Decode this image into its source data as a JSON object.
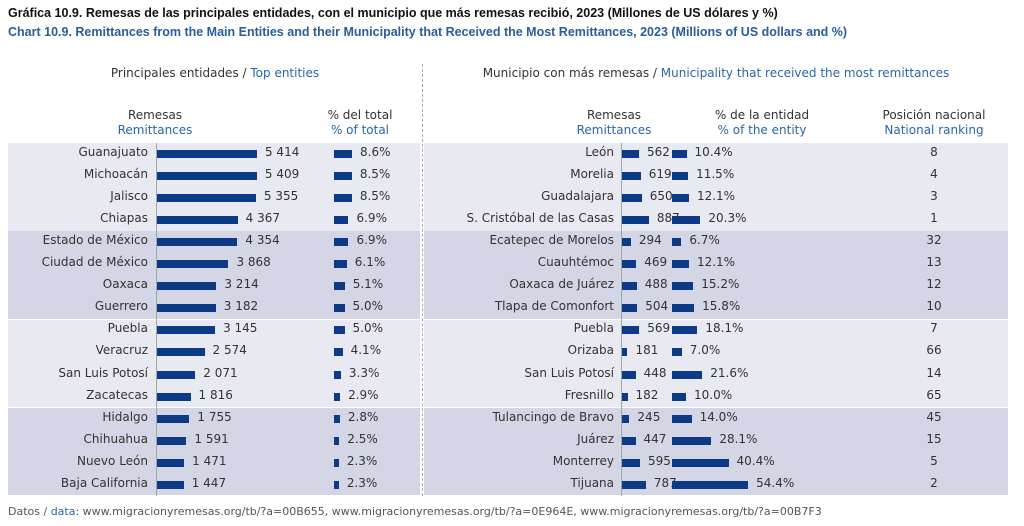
{
  "chart_data": {
    "type": "bar",
    "title": "Gráfica 10.9. Remesas de las principales entidades, con el municipio que más remesas recibió, 2023 (Millones de US dólares y %)",
    "subtitle": "Chart 10.9. Remittances from the Main Entities and their Municipality that Received the Most Remittances, 2023 (Millions of US dollars and %)",
    "left_section": {
      "es": "Principales entidades / ",
      "en": "Top entities"
    },
    "right_section": {
      "es": "Municipio con más remesas / ",
      "en": "Municipality that received the most remittances"
    },
    "columns": {
      "ent_rem": {
        "es": "Remesas",
        "en": "Remittances"
      },
      "ent_pct": {
        "es": "% del total",
        "en": "% of total"
      },
      "mun_rem": {
        "es": "Remesas",
        "en": "Remittances"
      },
      "mun_pct": {
        "es": "% de la entidad",
        "en": "% of the entity"
      },
      "mun_rank": {
        "es": "Posición nacional",
        "en": "National ranking"
      }
    },
    "rows": [
      {
        "entity": "Guanajuato",
        "rem": 5414,
        "rem_label": "5 414",
        "pct": 8.6,
        "pct_label": "8.6%",
        "municipality": "León",
        "mrem": 562,
        "mrem_label": "562",
        "mpct": 10.4,
        "mpct_label": "10.4%",
        "rank": "8"
      },
      {
        "entity": "Michoacán",
        "rem": 5409,
        "rem_label": "5 409",
        "pct": 8.5,
        "pct_label": "8.5%",
        "municipality": "Morelia",
        "mrem": 619,
        "mrem_label": "619",
        "mpct": 11.5,
        "mpct_label": "11.5%",
        "rank": "4"
      },
      {
        "entity": "Jalisco",
        "rem": 5355,
        "rem_label": "5 355",
        "pct": 8.5,
        "pct_label": "8.5%",
        "municipality": "Guadalajara",
        "mrem": 650,
        "mrem_label": "650",
        "mpct": 12.1,
        "mpct_label": "12.1%",
        "rank": "3"
      },
      {
        "entity": "Chiapas",
        "rem": 4367,
        "rem_label": "4 367",
        "pct": 6.9,
        "pct_label": "6.9%",
        "municipality": "S. Cristóbal de las Casas",
        "mrem": 887,
        "mrem_label": "887",
        "mpct": 20.3,
        "mpct_label": "20.3%",
        "rank": "1"
      },
      {
        "entity": "Estado de México",
        "rem": 4354,
        "rem_label": "4 354",
        "pct": 6.9,
        "pct_label": "6.9%",
        "municipality": "Ecatepec de Morelos",
        "mrem": 294,
        "mrem_label": "294",
        "mpct": 6.7,
        "mpct_label": "6.7%",
        "rank": "32"
      },
      {
        "entity": "Ciudad de México",
        "rem": 3868,
        "rem_label": "3 868",
        "pct": 6.1,
        "pct_label": "6.1%",
        "municipality": "Cuauhtémoc",
        "mrem": 469,
        "mrem_label": "469",
        "mpct": 12.1,
        "mpct_label": "12.1%",
        "rank": "13"
      },
      {
        "entity": "Oaxaca",
        "rem": 3214,
        "rem_label": "3 214",
        "pct": 5.1,
        "pct_label": "5.1%",
        "municipality": "Oaxaca de Juárez",
        "mrem": 488,
        "mrem_label": "488",
        "mpct": 15.2,
        "mpct_label": "15.2%",
        "rank": "12"
      },
      {
        "entity": "Guerrero",
        "rem": 3182,
        "rem_label": "3 182",
        "pct": 5.0,
        "pct_label": "5.0%",
        "municipality": "Tlapa de Comonfort",
        "mrem": 504,
        "mrem_label": "504",
        "mpct": 15.8,
        "mpct_label": "15.8%",
        "rank": "10"
      },
      {
        "entity": "Puebla",
        "rem": 3145,
        "rem_label": "3 145",
        "pct": 5.0,
        "pct_label": "5.0%",
        "municipality": "Puebla",
        "mrem": 569,
        "mrem_label": "569",
        "mpct": 18.1,
        "mpct_label": "18.1%",
        "rank": "7"
      },
      {
        "entity": "Veracruz",
        "rem": 2574,
        "rem_label": "2 574",
        "pct": 4.1,
        "pct_label": "4.1%",
        "municipality": "Orizaba",
        "mrem": 181,
        "mrem_label": "181",
        "mpct": 7.0,
        "mpct_label": "7.0%",
        "rank": "66"
      },
      {
        "entity": "San Luis Potosí",
        "rem": 2071,
        "rem_label": "2 071",
        "pct": 3.3,
        "pct_label": "3.3%",
        "municipality": "San Luis Potosí",
        "mrem": 448,
        "mrem_label": "448",
        "mpct": 21.6,
        "mpct_label": "21.6%",
        "rank": "14"
      },
      {
        "entity": "Zacatecas",
        "rem": 1816,
        "rem_label": "1 816",
        "pct": 2.9,
        "pct_label": "2.9%",
        "municipality": "Fresnillo",
        "mrem": 182,
        "mrem_label": "182",
        "mpct": 10.0,
        "mpct_label": "10.0%",
        "rank": "65"
      },
      {
        "entity": "Hidalgo",
        "rem": 1755,
        "rem_label": "1 755",
        "pct": 2.8,
        "pct_label": "2.8%",
        "municipality": "Tulancingo de Bravo",
        "mrem": 245,
        "mrem_label": "245",
        "mpct": 14.0,
        "mpct_label": "14.0%",
        "rank": "45"
      },
      {
        "entity": "Chihuahua",
        "rem": 1591,
        "rem_label": "1 591",
        "pct": 2.5,
        "pct_label": "2.5%",
        "municipality": "Juárez",
        "mrem": 447,
        "mrem_label": "447",
        "mpct": 28.1,
        "mpct_label": "28.1%",
        "rank": "15"
      },
      {
        "entity": "Nuevo León",
        "rem": 1471,
        "rem_label": "1 471",
        "pct": 2.3,
        "pct_label": "2.3%",
        "municipality": "Monterrey",
        "mrem": 595,
        "mrem_label": "595",
        "mpct": 40.4,
        "mpct_label": "40.4%",
        "rank": "5"
      },
      {
        "entity": "Baja California",
        "rem": 1447,
        "rem_label": "1 447",
        "pct": 2.3,
        "pct_label": "2.3%",
        "municipality": "Tijuana",
        "mrem": 787,
        "mrem_label": "787",
        "mpct": 54.4,
        "mpct_label": "54.4%",
        "rank": "2"
      }
    ],
    "footer": {
      "es": "Datos / ",
      "en": "data",
      "rest": ": www.migracionyremesas.org/tb/?a=00B655, www.migracionyremesas.org/tb/?a=0E964E, www.migracionyremesas.org/tb/?a=00B7F3"
    },
    "colors": {
      "bar": "#0d3a86",
      "band_light": "#e9e9f2",
      "band_dark": "#d4d5e5",
      "english_text": "#2a66a8"
    }
  }
}
